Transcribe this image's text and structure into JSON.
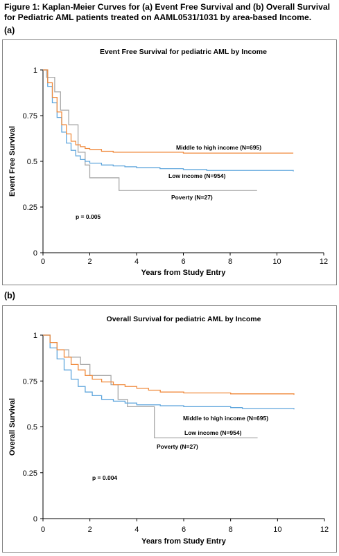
{
  "figure": {
    "title": "Figure 1: Kaplan-Meier Curves for (a) Event Free Survival and (b) Overall Survival for Pediatric AML patients treated on AAML0531/1031 by area-based Income.",
    "panel_a_label": "(a)",
    "panel_b_label": "(b)"
  },
  "colors": {
    "middle_high": "#F08A3C",
    "low": "#5EA5DC",
    "poverty": "#A8A8A8",
    "axis": "#000000",
    "border": "#7f7f7f"
  },
  "chart_data": [
    {
      "type": "line",
      "step": true,
      "title": "Event Free Survival for pediatric AML by Income",
      "xlabel": "Years from Study Entry",
      "ylabel": "Event Free Survival",
      "xlim": [
        0,
        12
      ],
      "ylim": [
        0,
        1
      ],
      "xticks": [
        "0",
        "2",
        "4",
        "6",
        "8",
        "10",
        "12"
      ],
      "yticks": [
        "0",
        "0.25",
        "0.5",
        "0.75",
        "1"
      ],
      "grid": false,
      "annotation": "p = 0.005",
      "series": [
        {
          "name": "Middle to high income (N=695)",
          "color_key": "middle_high",
          "x": [
            0,
            0.2,
            0.4,
            0.6,
            0.8,
            1.0,
            1.2,
            1.4,
            1.6,
            1.8,
            2.0,
            2.5,
            3.0,
            4.0,
            6.0,
            8.0,
            10.7
          ],
          "y": [
            1.0,
            0.93,
            0.85,
            0.77,
            0.7,
            0.65,
            0.61,
            0.59,
            0.58,
            0.57,
            0.565,
            0.555,
            0.55,
            0.55,
            0.545,
            0.545,
            0.545
          ]
        },
        {
          "name": "Low income (N=954)",
          "color_key": "low",
          "x": [
            0,
            0.2,
            0.4,
            0.6,
            0.8,
            1.0,
            1.2,
            1.4,
            1.6,
            1.8,
            2.0,
            2.5,
            3.0,
            3.5,
            4.0,
            5.0,
            6.0,
            7.0,
            8.0,
            10.7
          ],
          "y": [
            1.0,
            0.91,
            0.82,
            0.74,
            0.66,
            0.6,
            0.56,
            0.53,
            0.51,
            0.5,
            0.49,
            0.48,
            0.475,
            0.47,
            0.465,
            0.46,
            0.455,
            0.45,
            0.45,
            0.445
          ]
        },
        {
          "name": "Poverty (N=27)",
          "color_key": "poverty",
          "x": [
            0,
            0.15,
            0.5,
            0.75,
            1.1,
            1.5,
            1.8,
            2.0,
            3.25,
            9.15
          ],
          "y": [
            1.0,
            0.96,
            0.88,
            0.78,
            0.7,
            0.55,
            0.48,
            0.41,
            0.34,
            0.34
          ]
        }
      ]
    },
    {
      "type": "line",
      "step": true,
      "title": "Overall Survival for pediatric AML by Income",
      "xlabel": "Years from Study Entry",
      "ylabel": "Overall Survival",
      "xlim": [
        0,
        12
      ],
      "ylim": [
        0,
        1
      ],
      "xticks": [
        "0",
        "2",
        "4",
        "6",
        "8",
        "10",
        "12"
      ],
      "yticks": [
        "0",
        "0.25",
        "0.5",
        "0.75",
        "1"
      ],
      "grid": false,
      "annotation": "p = 0.004",
      "series": [
        {
          "name": "Middle to high income (N=695)",
          "color_key": "middle_high",
          "x": [
            0,
            0.3,
            0.6,
            0.9,
            1.2,
            1.5,
            1.8,
            2.1,
            2.5,
            3.0,
            3.5,
            4.0,
            4.5,
            5.0,
            6.0,
            8.0,
            10.7
          ],
          "y": [
            1.0,
            0.96,
            0.92,
            0.88,
            0.84,
            0.81,
            0.78,
            0.76,
            0.745,
            0.73,
            0.72,
            0.71,
            0.7,
            0.69,
            0.685,
            0.68,
            0.675
          ]
        },
        {
          "name": "Low income (N=954)",
          "color_key": "low",
          "x": [
            0,
            0.3,
            0.6,
            0.9,
            1.2,
            1.5,
            1.8,
            2.1,
            2.5,
            3.0,
            3.5,
            4.0,
            5.0,
            6.0,
            8.0,
            8.5,
            10.7
          ],
          "y": [
            1.0,
            0.93,
            0.87,
            0.81,
            0.76,
            0.72,
            0.69,
            0.67,
            0.65,
            0.64,
            0.63,
            0.62,
            0.615,
            0.61,
            0.605,
            0.6,
            0.595
          ]
        },
        {
          "name": "Poverty (N=27)",
          "color_key": "poverty",
          "x": [
            0,
            0.3,
            0.6,
            1.1,
            1.6,
            2.0,
            2.9,
            3.2,
            3.6,
            4.75,
            9.15
          ],
          "y": [
            1.0,
            0.96,
            0.92,
            0.88,
            0.84,
            0.78,
            0.73,
            0.65,
            0.61,
            0.44,
            0.44
          ]
        }
      ]
    }
  ]
}
